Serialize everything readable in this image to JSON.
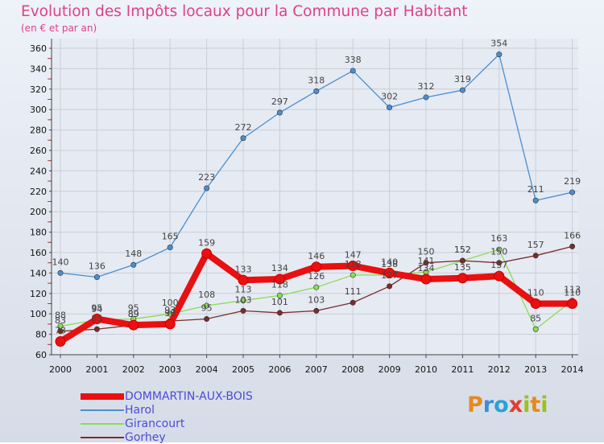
{
  "chart_data": {
    "type": "line",
    "title": "Evolution des Impôts locaux pour la Commune par Habitant",
    "subtitle": "(en € et par an)",
    "x": [
      "2000",
      "2001",
      "2002",
      "2003",
      "2004",
      "2005",
      "2006",
      "2007",
      "2008",
      "2009",
      "2010",
      "2011",
      "2012",
      "2013",
      "2014"
    ],
    "ylim": [
      60,
      360
    ],
    "yticks": [
      60,
      80,
      100,
      120,
      140,
      160,
      180,
      200,
      220,
      240,
      260,
      280,
      300,
      320,
      340,
      360
    ],
    "series": [
      {
        "name": "DOMMARTIN-AUX-BOIS",
        "color": "#e81010",
        "values": [
          73,
          95,
          89,
          90,
          159,
          133,
          134,
          146,
          147,
          140,
          134,
          135,
          137,
          110,
          110
        ]
      },
      {
        "name": "Harol",
        "color": "#4a8fd0",
        "values": [
          140,
          136,
          148,
          165,
          223,
          272,
          297,
          318,
          338,
          302,
          312,
          319,
          354,
          211,
          219
        ]
      },
      {
        "name": "Girancourt",
        "color": "#88dd55",
        "values": [
          88,
          94,
          95,
          100,
          108,
          113,
          118,
          126,
          138,
          138,
          141,
          152,
          163,
          85,
          113
        ]
      },
      {
        "name": "Gorhey",
        "color": "#7a2c2c",
        "values": [
          83,
          85,
          89,
          93,
          95,
          103,
          101,
          103,
          111,
          127,
          150,
          152,
          150,
          157,
          166
        ]
      }
    ]
  },
  "branding": {
    "logo": "ProXiti"
  }
}
